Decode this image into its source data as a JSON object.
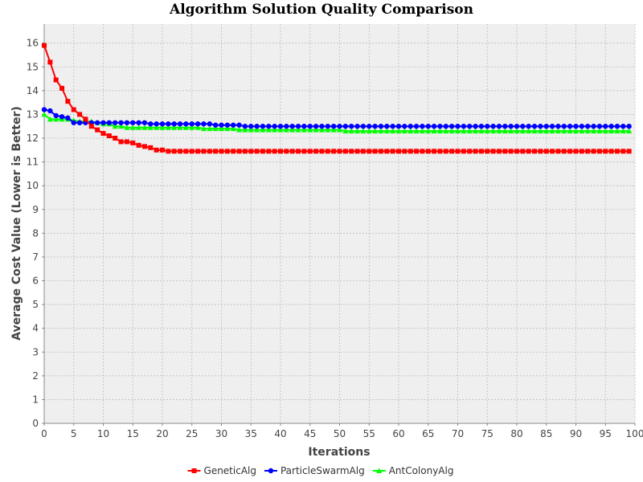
{
  "chart_data": {
    "type": "line",
    "title": "Algorithm Solution Quality Comparison",
    "xlabel": "Iterations",
    "ylabel": "Average Cost Value (Lower is Better)",
    "xlim": [
      0,
      100
    ],
    "ylim": [
      0,
      16.8
    ],
    "xticks": [
      0,
      5,
      10,
      15,
      20,
      25,
      30,
      35,
      40,
      45,
      50,
      55,
      60,
      65,
      70,
      75,
      80,
      85,
      90,
      95,
      100
    ],
    "yticks": [
      0,
      1,
      2,
      3,
      4,
      5,
      6,
      7,
      8,
      9,
      10,
      11,
      12,
      13,
      14,
      15,
      16
    ],
    "grid": true,
    "legend_position": "bottom",
    "background": "#efefef",
    "series": [
      {
        "name": "GeneticAlg",
        "color": "#ff0000",
        "marker": "square",
        "x": [
          0,
          1,
          2,
          3,
          4,
          5,
          6,
          7,
          8,
          9,
          10,
          11,
          12,
          13,
          14,
          15,
          16,
          17,
          18,
          19,
          20,
          21,
          22,
          23,
          24,
          25,
          26,
          27,
          28,
          29,
          30,
          31,
          32,
          33,
          34,
          35,
          36,
          37,
          38,
          39,
          40,
          41,
          42,
          43,
          44,
          45,
          46,
          47,
          48,
          49,
          50,
          51,
          52,
          53,
          54,
          55,
          56,
          57,
          58,
          59,
          60,
          61,
          62,
          63,
          64,
          65,
          66,
          67,
          68,
          69,
          70,
          71,
          72,
          73,
          74,
          75,
          76,
          77,
          78,
          79,
          80,
          81,
          82,
          83,
          84,
          85,
          86,
          87,
          88,
          89,
          90,
          91,
          92,
          93,
          94,
          95,
          96,
          97,
          98,
          99
        ],
        "values": [
          15.9,
          15.2,
          14.45,
          14.1,
          13.55,
          13.2,
          13.0,
          12.8,
          12.5,
          12.35,
          12.2,
          12.1,
          12.0,
          11.85,
          11.85,
          11.8,
          11.7,
          11.65,
          11.6,
          11.5,
          11.5,
          11.45,
          11.45,
          11.45,
          11.45,
          11.45,
          11.45,
          11.45,
          11.45,
          11.45,
          11.45,
          11.45,
          11.45,
          11.45,
          11.45,
          11.45,
          11.45,
          11.45,
          11.45,
          11.45,
          11.45,
          11.45,
          11.45,
          11.45,
          11.45,
          11.45,
          11.45,
          11.45,
          11.45,
          11.45,
          11.45,
          11.45,
          11.45,
          11.45,
          11.45,
          11.45,
          11.45,
          11.45,
          11.45,
          11.45,
          11.45,
          11.45,
          11.45,
          11.45,
          11.45,
          11.45,
          11.45,
          11.45,
          11.45,
          11.45,
          11.45,
          11.45,
          11.45,
          11.45,
          11.45,
          11.45,
          11.45,
          11.45,
          11.45,
          11.45,
          11.45,
          11.45,
          11.45,
          11.45,
          11.45,
          11.45,
          11.45,
          11.45,
          11.45,
          11.45,
          11.45,
          11.45,
          11.45,
          11.45,
          11.45,
          11.45,
          11.45,
          11.45,
          11.45,
          11.45
        ]
      },
      {
        "name": "ParticleSwarmAlg",
        "color": "#0000ff",
        "marker": "circle",
        "x": [
          0,
          1,
          2,
          3,
          4,
          5,
          6,
          7,
          8,
          9,
          10,
          11,
          12,
          13,
          14,
          15,
          16,
          17,
          18,
          19,
          20,
          21,
          22,
          23,
          24,
          25,
          26,
          27,
          28,
          29,
          30,
          31,
          32,
          33,
          34,
          35,
          36,
          37,
          38,
          39,
          40,
          41,
          42,
          43,
          44,
          45,
          46,
          47,
          48,
          49,
          50,
          51,
          52,
          53,
          54,
          55,
          56,
          57,
          58,
          59,
          60,
          61,
          62,
          63,
          64,
          65,
          66,
          67,
          68,
          69,
          70,
          71,
          72,
          73,
          74,
          75,
          76,
          77,
          78,
          79,
          80,
          81,
          82,
          83,
          84,
          85,
          86,
          87,
          88,
          89,
          90,
          91,
          92,
          93,
          94,
          95,
          96,
          97,
          98,
          99
        ],
        "values": [
          13.2,
          13.15,
          12.95,
          12.9,
          12.85,
          12.65,
          12.65,
          12.65,
          12.65,
          12.65,
          12.65,
          12.65,
          12.65,
          12.65,
          12.65,
          12.65,
          12.65,
          12.65,
          12.6,
          12.6,
          12.6,
          12.6,
          12.6,
          12.6,
          12.6,
          12.6,
          12.6,
          12.6,
          12.6,
          12.55,
          12.55,
          12.55,
          12.55,
          12.55,
          12.5,
          12.5,
          12.5,
          12.5,
          12.5,
          12.5,
          12.5,
          12.5,
          12.5,
          12.5,
          12.5,
          12.5,
          12.5,
          12.5,
          12.5,
          12.5,
          12.5,
          12.5,
          12.5,
          12.5,
          12.5,
          12.5,
          12.5,
          12.5,
          12.5,
          12.5,
          12.5,
          12.5,
          12.5,
          12.5,
          12.5,
          12.5,
          12.5,
          12.5,
          12.5,
          12.5,
          12.5,
          12.5,
          12.5,
          12.5,
          12.5,
          12.5,
          12.5,
          12.5,
          12.5,
          12.5,
          12.5,
          12.5,
          12.5,
          12.5,
          12.5,
          12.5,
          12.5,
          12.5,
          12.5,
          12.5,
          12.5,
          12.5,
          12.5,
          12.5,
          12.5,
          12.5,
          12.5,
          12.5,
          12.5,
          12.5
        ]
      },
      {
        "name": "AntColonyAlg",
        "color": "#00ff00",
        "marker": "triangle",
        "x": [
          0,
          1,
          2,
          3,
          4,
          5,
          6,
          7,
          8,
          9,
          10,
          11,
          12,
          13,
          14,
          15,
          16,
          17,
          18,
          19,
          20,
          21,
          22,
          23,
          24,
          25,
          26,
          27,
          28,
          29,
          30,
          31,
          32,
          33,
          34,
          35,
          36,
          37,
          38,
          39,
          40,
          41,
          42,
          43,
          44,
          45,
          46,
          47,
          48,
          49,
          50,
          51,
          52,
          53,
          54,
          55,
          56,
          57,
          58,
          59,
          60,
          61,
          62,
          63,
          64,
          65,
          66,
          67,
          68,
          69,
          70,
          71,
          72,
          73,
          74,
          75,
          76,
          77,
          78,
          79,
          80,
          81,
          82,
          83,
          84,
          85,
          86,
          87,
          88,
          89,
          90,
          91,
          92,
          93,
          94,
          95,
          96,
          97,
          98,
          99
        ],
        "values": [
          13.0,
          12.8,
          12.8,
          12.8,
          12.8,
          12.75,
          12.7,
          12.7,
          12.7,
          12.65,
          12.6,
          12.6,
          12.5,
          12.5,
          12.45,
          12.45,
          12.45,
          12.45,
          12.45,
          12.45,
          12.45,
          12.45,
          12.45,
          12.45,
          12.45,
          12.45,
          12.45,
          12.4,
          12.4,
          12.4,
          12.4,
          12.4,
          12.4,
          12.35,
          12.35,
          12.35,
          12.35,
          12.35,
          12.35,
          12.35,
          12.35,
          12.35,
          12.35,
          12.35,
          12.35,
          12.35,
          12.35,
          12.35,
          12.35,
          12.35,
          12.35,
          12.3,
          12.3,
          12.3,
          12.3,
          12.3,
          12.3,
          12.3,
          12.3,
          12.3,
          12.3,
          12.3,
          12.3,
          12.3,
          12.3,
          12.3,
          12.3,
          12.3,
          12.3,
          12.3,
          12.3,
          12.3,
          12.3,
          12.3,
          12.3,
          12.3,
          12.3,
          12.3,
          12.3,
          12.3,
          12.3,
          12.3,
          12.3,
          12.3,
          12.3,
          12.3,
          12.3,
          12.3,
          12.3,
          12.3,
          12.3,
          12.3,
          12.3,
          12.3,
          12.3,
          12.3,
          12.3,
          12.3,
          12.3,
          12.3
        ]
      }
    ]
  }
}
